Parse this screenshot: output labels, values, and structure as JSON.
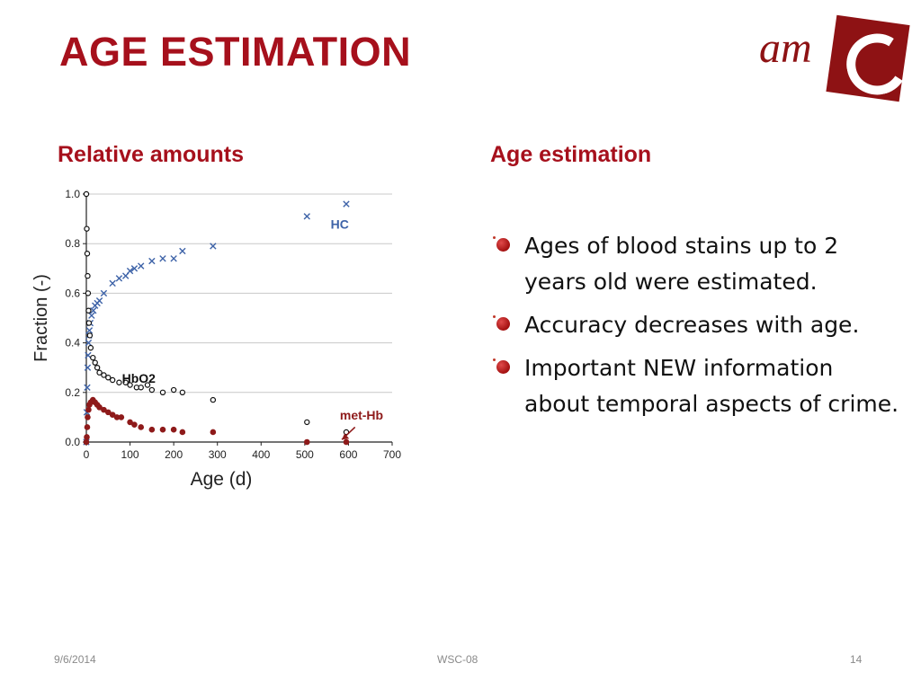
{
  "slide": {
    "title": "AGE ESTIMATION",
    "logo_text": "am",
    "left_heading": "Relative amounts",
    "right_heading": "Age estimation",
    "bullets": [
      "Ages of blood stains up to 2 years old were estimated.",
      "Accuracy decreases with age.",
      "Important NEW information about temporal aspects of crime."
    ],
    "footer": {
      "date": "9/6/2014",
      "center": "WSC-08",
      "page": "14"
    }
  },
  "colors": {
    "accent": "#a6101c",
    "hc": "#3e63a8",
    "hbo2": "#111111",
    "methb": "#8e1a1a",
    "grid": "#c8c8c8"
  },
  "chart_data": {
    "type": "scatter",
    "xlabel": "Age (d)",
    "ylabel": "Fraction (-)",
    "xlim": [
      0,
      700
    ],
    "ylim": [
      0,
      1.0
    ],
    "xticks": [
      "0",
      "100",
      "200",
      "300",
      "400",
      "500",
      "600",
      "700"
    ],
    "yticks": [
      "0.0",
      "0.2",
      "0.4",
      "0.6",
      "0.8",
      "1.0"
    ],
    "grid": true,
    "series": [
      {
        "name": "HC",
        "marker": "x",
        "color": "#3e63a8",
        "x": [
          0,
          1,
          2,
          3,
          4,
          5,
          6,
          7,
          9,
          12,
          16,
          20,
          25,
          30,
          40,
          60,
          75,
          90,
          100,
          110,
          125,
          150,
          175,
          200,
          220,
          290,
          505,
          595
        ],
        "y": [
          0.0,
          0.12,
          0.22,
          0.3,
          0.35,
          0.4,
          0.43,
          0.45,
          0.48,
          0.51,
          0.53,
          0.55,
          0.56,
          0.57,
          0.6,
          0.64,
          0.66,
          0.67,
          0.69,
          0.7,
          0.71,
          0.73,
          0.74,
          0.74,
          0.77,
          0.79,
          0.91,
          0.96
        ]
      },
      {
        "name": "HbO2",
        "marker": "circle-open",
        "color": "#111111",
        "x": [
          0,
          1,
          2,
          3,
          4,
          5,
          6,
          8,
          10,
          15,
          20,
          25,
          30,
          40,
          50,
          60,
          75,
          90,
          100,
          115,
          125,
          140,
          150,
          175,
          200,
          220,
          290,
          505,
          595
        ],
        "y": [
          1.0,
          0.86,
          0.76,
          0.67,
          0.6,
          0.53,
          0.48,
          0.43,
          0.38,
          0.34,
          0.32,
          0.3,
          0.28,
          0.27,
          0.26,
          0.25,
          0.24,
          0.24,
          0.23,
          0.22,
          0.22,
          0.23,
          0.21,
          0.2,
          0.21,
          0.2,
          0.17,
          0.08,
          0.04
        ]
      },
      {
        "name": "met-Hb",
        "marker": "circle-filled",
        "color": "#8e1a1a",
        "x": [
          0,
          1,
          2,
          3,
          5,
          7,
          10,
          15,
          20,
          25,
          30,
          40,
          50,
          60,
          70,
          80,
          100,
          110,
          125,
          150,
          175,
          200,
          220,
          290,
          505,
          595
        ],
        "y": [
          0.0,
          0.02,
          0.06,
          0.1,
          0.13,
          0.15,
          0.16,
          0.17,
          0.16,
          0.15,
          0.14,
          0.13,
          0.12,
          0.11,
          0.1,
          0.1,
          0.08,
          0.07,
          0.06,
          0.05,
          0.05,
          0.05,
          0.04,
          0.04,
          0.0,
          0.0
        ]
      }
    ],
    "labels": [
      {
        "text": "HC",
        "x": 580,
        "y": 0.86,
        "color": "#3e63a8"
      },
      {
        "text": "HbO2",
        "x": 120,
        "y": 0.24,
        "color": "#111111"
      },
      {
        "text": "met-Hb",
        "x": 630,
        "y": 0.09,
        "color": "#8e1a1a"
      }
    ]
  }
}
